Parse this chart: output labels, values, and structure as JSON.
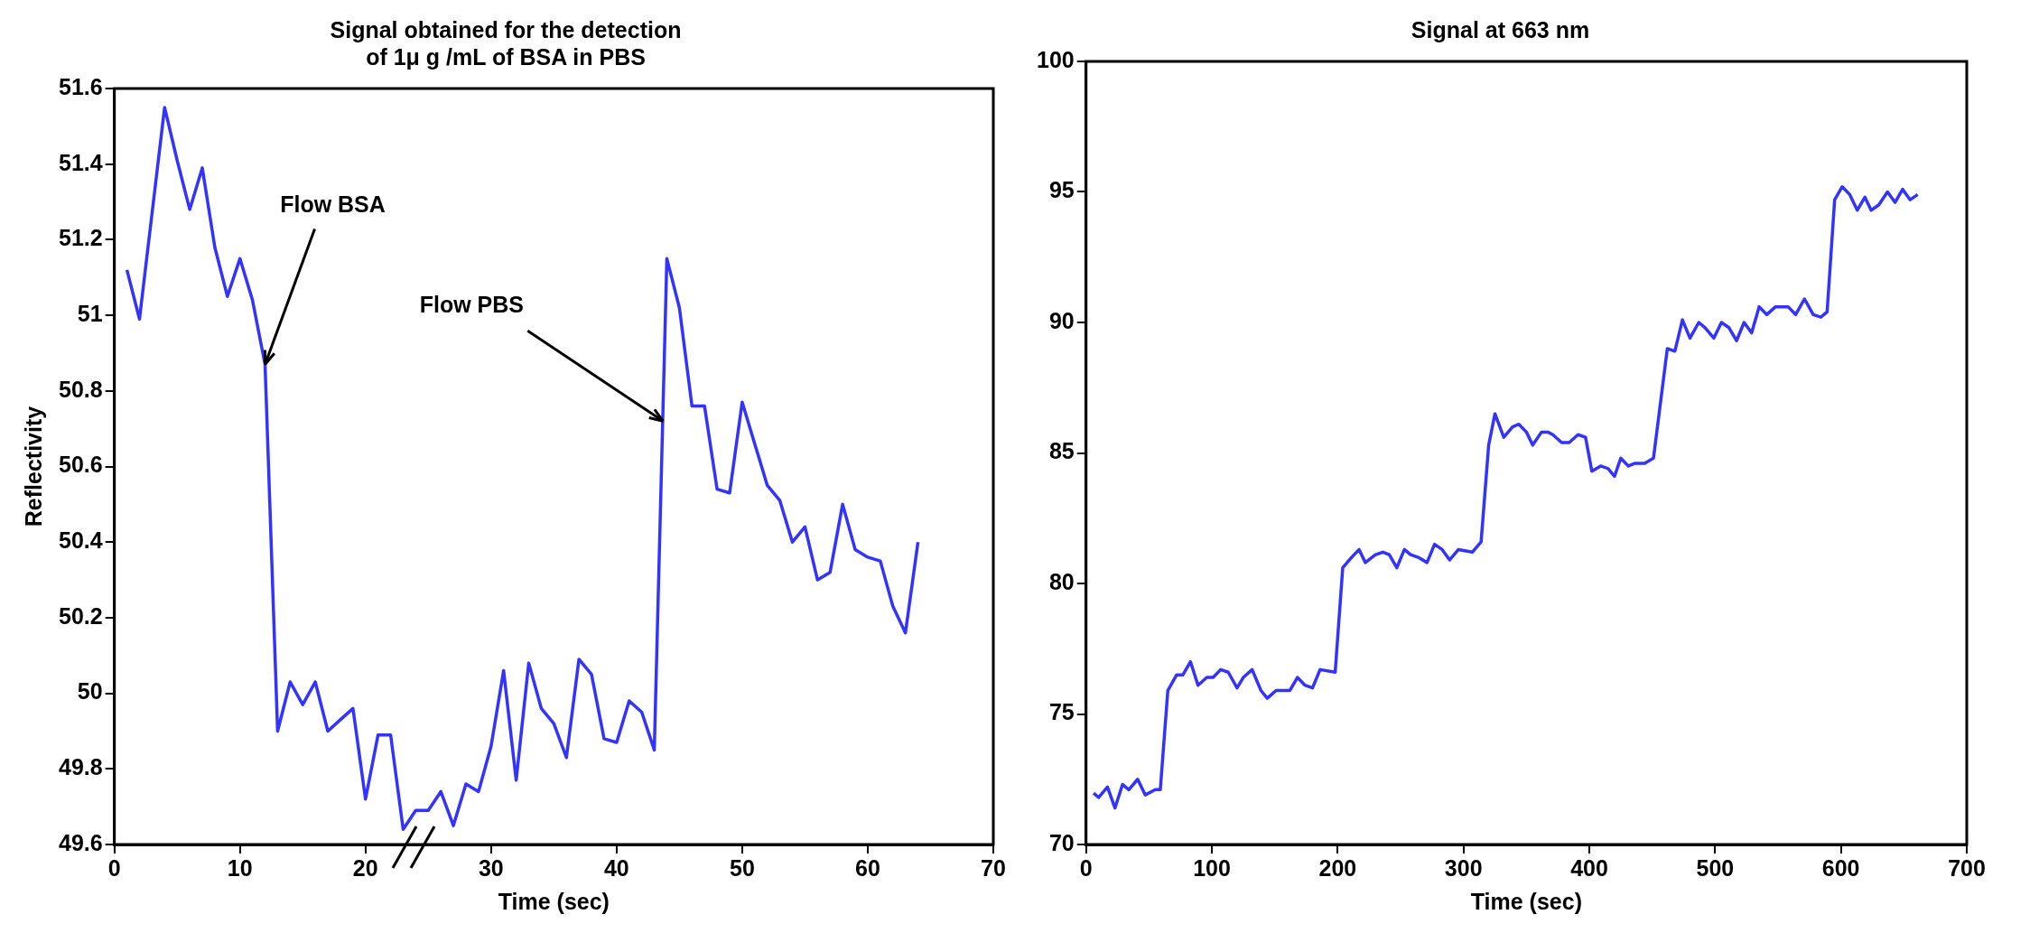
{
  "chart_data": [
    {
      "type": "line",
      "title": "Signal obtained for the detection\nof 1μ g /mL of BSA in PBS",
      "xlabel": "Time (sec)",
      "ylabel": "Reflectivity",
      "color": "#3333ff",
      "x": [
        1,
        2,
        3,
        4,
        5,
        6,
        7,
        8,
        9,
        10,
        11,
        12,
        13,
        14,
        15,
        16,
        17,
        18,
        19,
        20,
        21,
        22,
        23,
        24,
        25,
        26,
        27,
        28,
        29,
        30,
        31,
        32,
        33,
        34,
        35,
        36,
        37,
        38,
        39,
        40,
        41,
        42,
        43,
        44,
        45,
        46,
        47,
        48,
        49,
        50,
        51,
        52,
        53,
        54,
        55,
        56,
        57,
        58,
        59,
        60,
        61,
        62,
        63,
        64
      ],
      "values": [
        51.12,
        50.99,
        51.27,
        51.55,
        51.41,
        51.28,
        51.39,
        51.18,
        51.05,
        51.15,
        51.04,
        50.87,
        49.9,
        50.03,
        49.97,
        50.03,
        49.9,
        49.93,
        49.96,
        49.72,
        49.89,
        49.89,
        49.64,
        49.69,
        49.69,
        49.74,
        49.65,
        49.76,
        49.74,
        49.86,
        50.06,
        49.77,
        50.08,
        49.96,
        49.92,
        49.83,
        50.09,
        50.05,
        49.88,
        49.87,
        49.98,
        49.95,
        49.85,
        51.15,
        51.02,
        50.76,
        50.76,
        50.54,
        50.53,
        50.77,
        50.66,
        50.55,
        50.51,
        50.4,
        50.44,
        50.3,
        50.32,
        50.5,
        50.38,
        50.36,
        50.35,
        50.23,
        50.16,
        50.4
      ],
      "xlim": [
        0,
        70
      ],
      "xticks": [
        0,
        10,
        20,
        30,
        40,
        50,
        60,
        70
      ],
      "ylim": [
        49.6,
        51.6
      ],
      "yticks": [
        49.6,
        49.8,
        50,
        50.2,
        50.4,
        50.6,
        50.8,
        51,
        51.2,
        51.4,
        51.6
      ],
      "annotations": [
        {
          "text": "Flow BSA",
          "x": 12,
          "y": 50.87
        },
        {
          "text": "Flow PBS",
          "x": 43.7,
          "y": 50.72
        }
      ],
      "grid": false,
      "legend": false
    },
    {
      "type": "line",
      "title": "Signal at 663 nm",
      "xlabel": "Time (sec)",
      "color": "#3333ff",
      "x": [
        6,
        10,
        17,
        23,
        29,
        34,
        41,
        47,
        55,
        59,
        65,
        72,
        77,
        83,
        89,
        96,
        101,
        107,
        113,
        120,
        125,
        132,
        139,
        144,
        151,
        162,
        168,
        174,
        180,
        186,
        198,
        204,
        211,
        217,
        222,
        230,
        236,
        241,
        247,
        253,
        258,
        264,
        271,
        277,
        283,
        289,
        296,
        307,
        314,
        320,
        325,
        332,
        339,
        344,
        350,
        355,
        362,
        367,
        371,
        378,
        384,
        391,
        397,
        402,
        409,
        415,
        420,
        425,
        431,
        436,
        444,
        451,
        462,
        468,
        474,
        480,
        487,
        492,
        499,
        505,
        511,
        517,
        523,
        529,
        535,
        541,
        548,
        558,
        564,
        571,
        578,
        584,
        589,
        595,
        601,
        607,
        613,
        619,
        624,
        630,
        637,
        643,
        649,
        655,
        661
      ],
      "values": [
        71.97,
        71.8,
        72.2,
        71.4,
        72.3,
        72.1,
        72.5,
        71.9,
        72.1,
        72.1,
        75.9,
        76.5,
        76.5,
        77.0,
        76.1,
        76.4,
        76.4,
        76.7,
        76.6,
        76.0,
        76.4,
        76.7,
        75.9,
        75.6,
        75.9,
        75.9,
        76.4,
        76.1,
        76.0,
        76.7,
        76.6,
        80.6,
        81.0,
        81.3,
        80.8,
        81.1,
        81.2,
        81.1,
        80.6,
        81.3,
        81.1,
        81.0,
        80.8,
        81.5,
        81.3,
        80.9,
        81.3,
        81.2,
        81.6,
        85.3,
        86.5,
        85.6,
        86.0,
        86.1,
        85.8,
        85.3,
        85.8,
        85.8,
        85.7,
        85.4,
        85.4,
        85.7,
        85.6,
        84.3,
        84.5,
        84.4,
        84.1,
        84.8,
        84.5,
        84.6,
        84.6,
        84.8,
        89.0,
        88.9,
        90.1,
        89.4,
        90.0,
        89.8,
        89.4,
        90.0,
        89.8,
        89.3,
        90.0,
        89.6,
        90.6,
        90.3,
        90.6,
        90.6,
        90.3,
        90.9,
        90.3,
        90.2,
        90.4,
        94.7,
        95.2,
        94.9,
        94.3,
        94.8,
        94.3,
        94.5,
        95.0,
        94.6,
        95.1,
        94.7,
        94.9
      ],
      "xlim": [
        0,
        700
      ],
      "xticks": [
        0,
        100,
        200,
        300,
        400,
        500,
        600,
        700
      ],
      "ylim": [
        70,
        100
      ],
      "yticks": [
        70,
        75,
        80,
        85,
        90,
        95,
        100
      ],
      "grid": false,
      "legend": false
    }
  ]
}
